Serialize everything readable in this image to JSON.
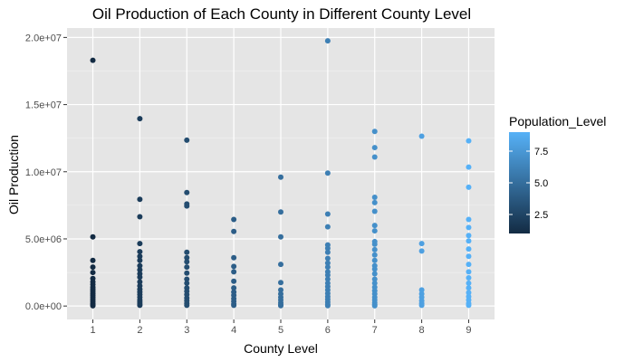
{
  "chart_data": {
    "type": "scatter",
    "title": "Oil Production of Each County in Different County Level",
    "xlabel": "County Level",
    "ylabel": "Oil Production",
    "x_ticks": [
      "1",
      "2",
      "3",
      "4",
      "5",
      "6",
      "7",
      "8",
      "9"
    ],
    "y_ticks": [
      {
        "value": 0,
        "label": "0.0e+00"
      },
      {
        "value": 5000000,
        "label": "5.0e+06"
      },
      {
        "value": 10000000,
        "label": "1.0e+07"
      },
      {
        "value": 15000000,
        "label": "1.5e+07"
      },
      {
        "value": 20000000,
        "label": "2.0e+07"
      }
    ],
    "xlim": [
      0.45,
      9.55
    ],
    "ylim": [
      -1000000,
      20700000
    ],
    "grid": true,
    "legend": {
      "title": "Population_Level",
      "placement": "right",
      "ticks": [
        {
          "value": 2.5,
          "label": "2.5"
        },
        {
          "value": 5,
          "label": "5.0"
        },
        {
          "value": 7.5,
          "label": "7.5"
        }
      ],
      "range": [
        1,
        9
      ],
      "color_low": "#132b43",
      "color_high": "#56b1f7"
    },
    "points": [
      {
        "x": 1,
        "pop": 1,
        "y": [
          18300000,
          5150000,
          3400000,
          2900000,
          2500000,
          2050000,
          1800000,
          1600000,
          1400000,
          1250000,
          1100000,
          950000,
          800000,
          650000,
          500000,
          350000,
          200000,
          80000,
          20000
        ]
      },
      {
        "x": 2,
        "pop": 2,
        "y": [
          13950000,
          7950000,
          6650000,
          4650000,
          4050000,
          3700000,
          3400000,
          3000000,
          2700000,
          2400000,
          2150000,
          1800000,
          1500000,
          1250000,
          1050000,
          850000,
          650000,
          450000,
          300000,
          150000,
          50000
        ]
      },
      {
        "x": 3,
        "pop": 3,
        "y": [
          12350000,
          8450000,
          7600000,
          7450000,
          4000000,
          3600000,
          3300000,
          2900000,
          2450000,
          2000000,
          1700000,
          1350000,
          1100000,
          850000,
          600000,
          400000,
          200000,
          50000
        ]
      },
      {
        "x": 4,
        "pop": 4,
        "y": [
          6450000,
          5550000,
          3600000,
          2950000,
          2550000,
          1850000,
          1350000,
          1050000,
          800000,
          550000,
          350000,
          150000,
          50000
        ]
      },
      {
        "x": 5,
        "pop": 5,
        "y": [
          9600000,
          7000000,
          5150000,
          3100000,
          1750000,
          1200000,
          900000,
          650000,
          450000,
          250000,
          100000,
          30000
        ]
      },
      {
        "x": 6,
        "pop": 6,
        "y": [
          19750000,
          9900000,
          6850000,
          5900000,
          4550000,
          4300000,
          4000000,
          3550000,
          3200000,
          2900000,
          2550000,
          2300000,
          2000000,
          1700000,
          1450000,
          1200000,
          950000,
          700000,
          500000,
          300000,
          120000,
          30000
        ]
      },
      {
        "x": 7,
        "pop": 7,
        "y": [
          13000000,
          11800000,
          11100000,
          8100000,
          7700000,
          7050000,
          6000000,
          5600000,
          4800000,
          4600000,
          4200000,
          3800000,
          3400000,
          3000000,
          2750000,
          2400000,
          2000000,
          1700000,
          1400000,
          1150000,
          900000,
          650000,
          450000,
          250000,
          100000,
          20000
        ]
      },
      {
        "x": 8,
        "pop": 8,
        "y": [
          12650000,
          4650000,
          4100000,
          1200000,
          900000,
          650000,
          400000,
          200000,
          50000
        ]
      },
      {
        "x": 9,
        "pop": 9,
        "y": [
          12300000,
          10350000,
          8850000,
          6450000,
          5850000,
          5250000,
          4850000,
          4250000,
          3700000,
          3100000,
          2550000,
          2100000,
          1700000,
          1350000,
          1000000,
          700000,
          450000,
          200000,
          50000
        ]
      }
    ]
  }
}
